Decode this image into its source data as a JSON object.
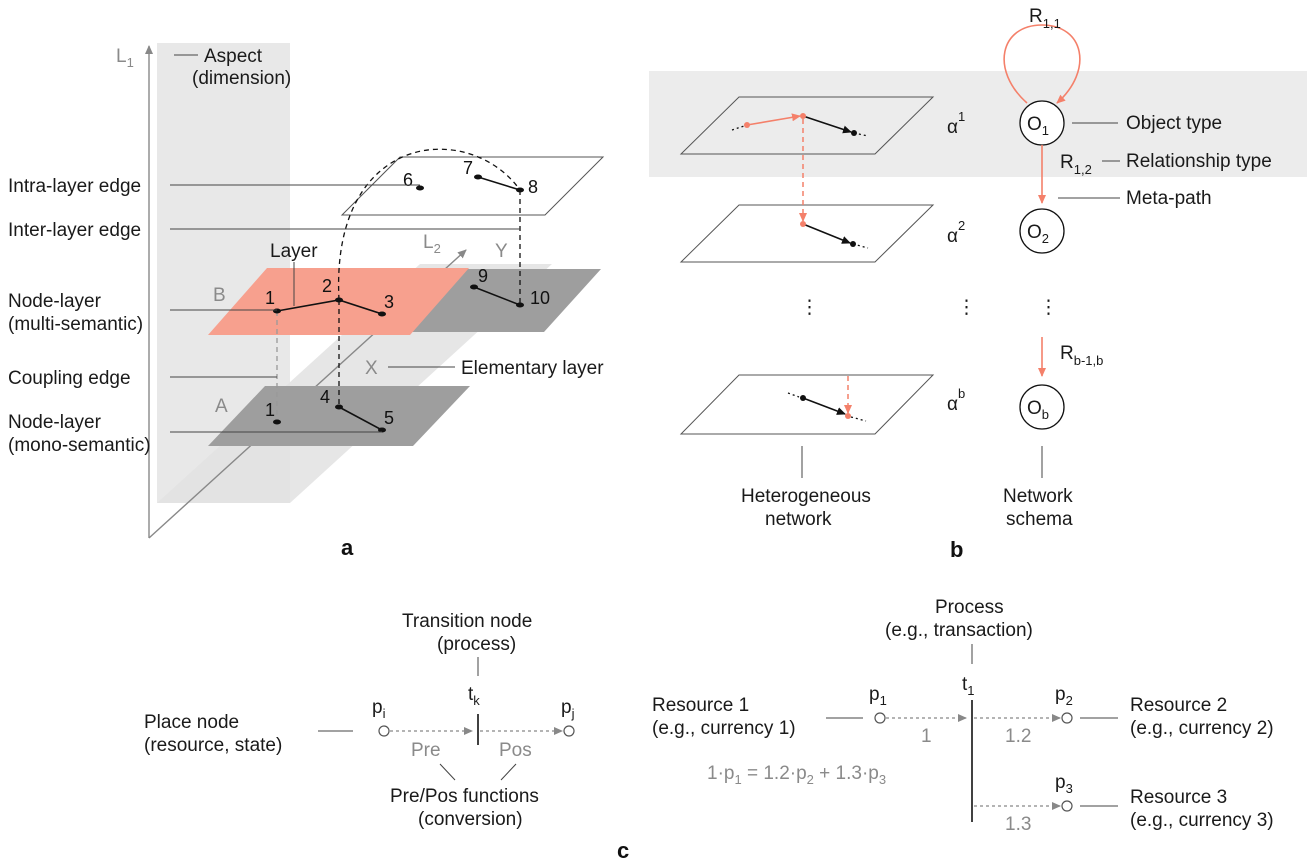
{
  "colors": {
    "salmon": "#f4806a",
    "salmon_fill": "#f7a08e",
    "dark_plane": "#9e9e9e",
    "light_gray": "#e8e8e8",
    "gray_text": "#8a8a8a",
    "ink": "#111111"
  },
  "panel_a": {
    "label": "a",
    "axis_l1": "L",
    "axis_l1_sub": "1",
    "axis_l2": "L",
    "axis_l2_sub": "2",
    "axis_y": "Y",
    "axis_x": "X",
    "aspect_line1": "Aspect",
    "aspect_line2": "(dimension)",
    "intra_layer_edge": "Intra-layer edge",
    "inter_layer_edge": "Inter-layer edge",
    "layer": "Layer",
    "node_layer_multi_line1": "Node-layer",
    "node_layer_multi_line2": "(multi-semantic)",
    "coupling_edge": "Coupling edge",
    "node_layer_mono_line1": "Node-layer",
    "node_layer_mono_line2": "(mono-semantic)",
    "elementary_layer": "Elementary layer",
    "layer_b": "B",
    "layer_a": "A",
    "nodes": [
      "1",
      "2",
      "3",
      "1",
      "4",
      "5",
      "6",
      "7",
      "8",
      "9",
      "10"
    ]
  },
  "panel_b": {
    "label": "b",
    "r11": "R",
    "r11_sub": "1,1",
    "o1": "O",
    "o1_sub": "1",
    "object_type": "Object type",
    "r12": "R",
    "r12_sub": "1,2",
    "relationship_type": "Relationship type",
    "meta_path": "Meta-path",
    "o2": "O",
    "o2_sub": "2",
    "rb": "R",
    "rb_sub": "b-1,b",
    "ob": "O",
    "ob_sub": "b",
    "alpha": "α",
    "alpha1_sup": "1",
    "alpha2_sup": "2",
    "alphab_sup": "b",
    "ellipsis": "⋮",
    "het_line1": "Heterogeneous",
    "het_line2": "network",
    "schema_line1": "Network",
    "schema_line2": "schema"
  },
  "panel_c": {
    "label": "c",
    "transition_line1": "Transition node",
    "transition_line2": "(process)",
    "place_line1": "Place node",
    "place_line2": "(resource, state)",
    "pi": "p",
    "pi_sub": "i",
    "tk": "t",
    "tk_sub": "k",
    "pj": "p",
    "pj_sub": "j",
    "pre": "Pre",
    "pos": "Pos",
    "prepos_line1": "Pre/Pos functions",
    "prepos_line2": "(conversion)",
    "process_line1": "Process",
    "process_line2": "(e.g., transaction)",
    "res1_line1": "Resource 1",
    "res1_line2": "(e.g., currency 1)",
    "res2_line1": "Resource 2",
    "res2_line2": "(e.g., currency 2)",
    "res3_line1": "Resource 3",
    "res3_line2": "(e.g., currency 3)",
    "p1": "p",
    "p1_sub": "1",
    "t1": "t",
    "t1_sub": "1",
    "p2": "p",
    "p2_sub": "2",
    "p3": "p",
    "p3_sub": "3",
    "w1": "1",
    "w12": "1.2",
    "w13": "1.3",
    "eq_a": "1·p",
    "eq_a_sub": "1",
    "eq_b": " = 1.2·p",
    "eq_b_sub": "2",
    "eq_c": " + 1.3·p",
    "eq_c_sub": "3"
  }
}
